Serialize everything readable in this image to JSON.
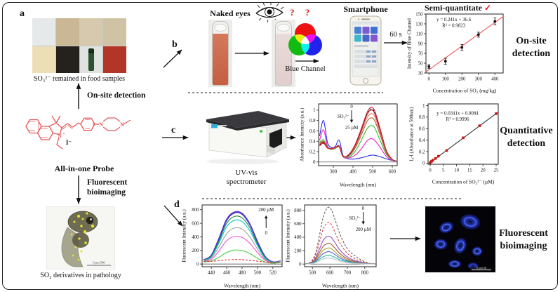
{
  "figure": {
    "labels": {
      "a": "a",
      "b": "b",
      "c": "c",
      "d": "d"
    }
  },
  "panel_a": {
    "food_caption": "SO₃²⁻ remained in food samples",
    "food_colors": [
      "#e6e9ea",
      "#c9b795",
      "#d7c9ae",
      "#d0c2a4",
      "#ecdfb8",
      "#25211c",
      "#dfe2de",
      "#b23527"
    ],
    "onsite_arrow_label": "On-site detection",
    "probe_label": "All-in-one Probe",
    "iodide": "I⁻",
    "probe_color": "#e85858",
    "bio_arrow_label_1": "Fluorescent",
    "bio_arrow_label_2": "bioimaging",
    "fish_caption": "SO₂ derivatives in pathology",
    "fish_scalebar": "0   µm   500"
  },
  "panel_b": {
    "naked_eyes": "Naked eyes",
    "questions": "?  ?",
    "blue_channel": "Blue Channel",
    "smartphone": "Smartphone",
    "time": "60 s",
    "chart_title": "Semi-quantitate",
    "check": "✓",
    "side_label_1": "On-site",
    "side_label_2": "detection"
  },
  "panel_c": {
    "instrument_1": "UV-vis",
    "instrument_2": "spectrometer",
    "side_label_1": "Quantitative",
    "side_label_2": "detection"
  },
  "panel_d": {
    "side_label_1": "Fluorescent",
    "side_label_2": "bioimaging",
    "cells_scalebar": "0  µm  50"
  },
  "chart_data": [
    {
      "id": "blue-channel-calibration",
      "type": "scatter",
      "x": [
        0,
        100,
        200,
        300,
        400
      ],
      "y": [
        43,
        54,
        82,
        108,
        135
      ],
      "yerr": [
        4,
        6,
        6,
        5,
        7
      ],
      "fit": {
        "slope": 0.241,
        "intercept": 36.6,
        "color": "#f25555"
      },
      "equation": "y = 0.241x + 36.6",
      "r2": "R² = 0.9823",
      "eq_fx": 0.36,
      "eq_fy": 0.12,
      "xlabel": "Concentration of SO₂ (mg/kg)",
      "ylabel": "Intensity of Blue Channel",
      "xlim": [
        -18,
        450
      ],
      "ylim": [
        30,
        150
      ],
      "xticks": [
        0,
        100,
        200,
        300,
        400
      ],
      "yticks": [
        30,
        50,
        70,
        90,
        110,
        130,
        150
      ],
      "marker": "circle",
      "marker_color": "#111111",
      "margins": {
        "l": 30,
        "r": 8,
        "t": 6,
        "b": 30
      }
    },
    {
      "id": "uv-vis-absorbance-spectra",
      "type": "spectra",
      "x": [
        230,
        250,
        270,
        290,
        310,
        330,
        350,
        380,
        410,
        440,
        470,
        490,
        510,
        540,
        570,
        600,
        620
      ],
      "series": [
        {
          "name": "0",
          "color": "#2a2aee",
          "y": [
            0.5,
            0.8,
            0.38,
            0.28,
            0.3,
            0.42,
            0.12,
            0.06,
            0.06,
            0.08,
            0.11,
            0.13,
            0.13,
            0.1,
            0.06,
            0.03,
            0.02
          ]
        },
        {
          "name": "",
          "color": "#f020c0",
          "y": [
            0.42,
            0.62,
            0.31,
            0.25,
            0.27,
            0.31,
            0.1,
            0.08,
            0.13,
            0.24,
            0.4,
            0.45,
            0.42,
            0.27,
            0.11,
            0.03,
            0.02
          ]
        },
        {
          "name": "",
          "color": "#30c030",
          "y": [
            0.38,
            0.43,
            0.29,
            0.24,
            0.26,
            0.29,
            0.1,
            0.1,
            0.2,
            0.4,
            0.63,
            0.7,
            0.66,
            0.4,
            0.15,
            0.04,
            0.02
          ]
        },
        {
          "name": "",
          "color": "#b06030",
          "y": [
            0.36,
            0.4,
            0.28,
            0.25,
            0.27,
            0.29,
            0.1,
            0.12,
            0.26,
            0.5,
            0.77,
            0.85,
            0.8,
            0.5,
            0.18,
            0.05,
            0.02
          ]
        },
        {
          "name": "",
          "color": "#f07060",
          "y": [
            0.35,
            0.39,
            0.28,
            0.25,
            0.27,
            0.3,
            0.1,
            0.13,
            0.29,
            0.55,
            0.84,
            0.93,
            0.88,
            0.55,
            0.2,
            0.05,
            0.02
          ]
        },
        {
          "name": "",
          "color": "#a02020",
          "y": [
            0.33,
            0.38,
            0.28,
            0.26,
            0.28,
            0.3,
            0.11,
            0.14,
            0.31,
            0.59,
            0.9,
            1.0,
            0.94,
            0.59,
            0.21,
            0.05,
            0.02
          ]
        },
        {
          "name": "",
          "color": "#303030",
          "dash": true,
          "y": [
            0.32,
            0.37,
            0.27,
            0.26,
            0.28,
            0.3,
            0.11,
            0.14,
            0.32,
            0.6,
            0.92,
            1.02,
            0.96,
            0.6,
            0.22,
            0.05,
            0.02
          ]
        },
        {
          "name": "25 µM",
          "color": "#d02040",
          "y": [
            0.31,
            0.36,
            0.27,
            0.26,
            0.28,
            0.31,
            0.11,
            0.15,
            0.33,
            0.62,
            0.94,
            1.05,
            0.99,
            0.62,
            0.22,
            0.05,
            0.02
          ]
        }
      ],
      "annotation": {
        "fx": 0.42,
        "fy": 0.07,
        "top": "0",
        "side": "SO₃²⁻",
        "bottom": "25 µM",
        "dir": "down"
      },
      "xlabel": "Wavelength (nm)",
      "ylabel": "Absorbance Intensity (a.u.)",
      "xlim": [
        225,
        625
      ],
      "ylim": [
        -0.07,
        1.12
      ],
      "xticks": [
        300,
        400,
        500,
        600
      ],
      "yticks": [
        0,
        0.2,
        0.4,
        0.6,
        0.8,
        1
      ],
      "zeroline": true,
      "margins": {
        "l": 30,
        "r": 6,
        "t": 8,
        "b": 32
      }
    },
    {
      "id": "absorbance-calibration",
      "type": "scatter",
      "x": [
        0,
        0.5,
        1,
        2,
        3.125,
        6.25,
        12.5,
        18.75,
        25
      ],
      "y": [
        0.01,
        0.03,
        0.05,
        0.08,
        0.12,
        0.22,
        0.44,
        0.65,
        0.86
      ],
      "fit": {
        "slope": 0.0341,
        "intercept": 0.0084,
        "color": "#333333"
      },
      "equation": "y = 0.0341x + 0.0084",
      "r2": "R² = 0.9996",
      "eq_fx": 0.42,
      "eq_fy": 0.18,
      "xlabel": "Concentration of SO₃²⁻ (µM)",
      "ylabel": "I₀-I (Absorbance at 500nm)",
      "xlim": [
        -0.8,
        25.8
      ],
      "ylim": [
        -0.02,
        1.03
      ],
      "xticks": [
        0,
        5,
        10,
        15,
        20,
        25
      ],
      "yticks": [
        0,
        0.2,
        0.4,
        0.6,
        0.8,
        1
      ],
      "marker": "square",
      "marker_color": "#cc1111",
      "margins": {
        "l": 30,
        "r": 10,
        "t": 8,
        "b": 30
      }
    },
    {
      "id": "fluorescence-spectra-blue",
      "type": "spectra",
      "x": [
        430,
        440,
        450,
        460,
        470,
        480,
        490,
        500,
        510,
        520,
        530
      ],
      "series": [
        {
          "name": "200 µM",
          "color": "#7030c0",
          "lw": 1.7,
          "y": [
            60,
            130,
            380,
            660,
            765,
            745,
            590,
            330,
            110,
            30,
            45
          ]
        },
        {
          "name": "",
          "color": "#4040d0",
          "lw": 1.5,
          "y": [
            58,
            125,
            368,
            645,
            752,
            732,
            578,
            322,
            105,
            28,
            42
          ]
        },
        {
          "name": "",
          "color": "#308030",
          "y": [
            55,
            115,
            340,
            600,
            700,
            680,
            535,
            295,
            95,
            25,
            40
          ]
        },
        {
          "name": "",
          "color": "#00c8d0",
          "y": [
            50,
            105,
            310,
            550,
            645,
            625,
            490,
            270,
            85,
            22,
            38
          ]
        },
        {
          "name": "",
          "color": "#a0a0a0",
          "y": [
            45,
            90,
            255,
            450,
            530,
            515,
            400,
            220,
            70,
            20,
            35
          ]
        },
        {
          "name": "",
          "color": "#f050d0",
          "y": [
            40,
            70,
            195,
            345,
            405,
            392,
            305,
            168,
            55,
            18,
            30
          ]
        },
        {
          "name": "",
          "color": "#40d040",
          "y": [
            30,
            45,
            100,
            170,
            205,
            198,
            155,
            85,
            30,
            12,
            25
          ]
        },
        {
          "name": "0",
          "color": "#e03030",
          "dash": true,
          "y": [
            35,
            40,
            50,
            60,
            66,
            64,
            55,
            42,
            28,
            20,
            30
          ]
        }
      ],
      "annotation": {
        "fx": 0.8,
        "fy": 0.1,
        "top": "200 µM",
        "bottom": "0",
        "dir": "up"
      },
      "xlabel": "Wavelength (nm)",
      "ylabel": "Fluorescent Intensity (a.u.)",
      "xlim": [
        428,
        532
      ],
      "ylim": [
        -40,
        870
      ],
      "xticks": [
        440,
        460,
        480,
        500,
        520
      ],
      "yticks": [
        0,
        200,
        400,
        600,
        800
      ],
      "zeroline": true,
      "margins": {
        "l": 32,
        "r": 6,
        "t": 8,
        "b": 32
      }
    },
    {
      "id": "fluorescence-spectra-red",
      "type": "spectra",
      "x": [
        460,
        480,
        500,
        520,
        540,
        560,
        580,
        595,
        610,
        630,
        660,
        700,
        740,
        780,
        820,
        860
      ],
      "series": [
        {
          "name": "0",
          "color": "#606060",
          "dash": true,
          "y": [
            5,
            15,
            60,
            180,
            420,
            680,
            820,
            845,
            800,
            660,
            430,
            230,
            130,
            60,
            15,
            5
          ]
        },
        {
          "name": "",
          "color": "#e04040",
          "dash": true,
          "y": [
            4,
            12,
            45,
            140,
            320,
            510,
            600,
            620,
            580,
            470,
            300,
            160,
            85,
            40,
            10,
            4
          ]
        },
        {
          "name": "",
          "color": "#9050cc",
          "y": [
            3,
            10,
            35,
            100,
            220,
            345,
            405,
            415,
            390,
            315,
            200,
            105,
            55,
            25,
            8,
            3
          ]
        },
        {
          "name": "",
          "color": "#a05a2c",
          "y": [
            3,
            8,
            28,
            80,
            170,
            260,
            300,
            310,
            290,
            235,
            150,
            80,
            40,
            18,
            6,
            2
          ]
        },
        {
          "name": "",
          "color": "#a0a030",
          "y": [
            2,
            7,
            22,
            62,
            130,
            200,
            232,
            240,
            225,
            180,
            115,
            60,
            30,
            14,
            5,
            2
          ]
        },
        {
          "name": "",
          "color": "#5060d8",
          "y": [
            2,
            5,
            17,
            48,
            100,
            152,
            178,
            185,
            172,
            140,
            88,
            46,
            24,
            11,
            4,
            1
          ]
        },
        {
          "name": "",
          "color": "#30b8a8",
          "y": [
            1,
            4,
            12,
            34,
            70,
            106,
            125,
            130,
            121,
            98,
            62,
            32,
            16,
            8,
            3,
            1
          ]
        },
        {
          "name": "200 µM",
          "color": "#c0c0c0",
          "y": [
            1,
            3,
            8,
            23,
            48,
            73,
            86,
            90,
            84,
            68,
            43,
            22,
            11,
            5,
            2,
            1
          ]
        }
      ],
      "annotation": {
        "fx": 0.82,
        "fy": 0.08,
        "top": "0",
        "side": "SO₃²⁻",
        "bottom": "200 µM",
        "dir": "down"
      },
      "xlabel": "Wavelength (nm)",
      "ylabel": "Fluorescent Intensity (a.u.)",
      "xlim": [
        455,
        865
      ],
      "ylim": [
        -40,
        880
      ],
      "xticks": [
        500,
        600,
        700,
        800
      ],
      "yticks": [
        0,
        200,
        400,
        600,
        800
      ],
      "zeroline": true,
      "margins": {
        "l": 30,
        "r": 6,
        "t": 8,
        "b": 32
      }
    }
  ]
}
